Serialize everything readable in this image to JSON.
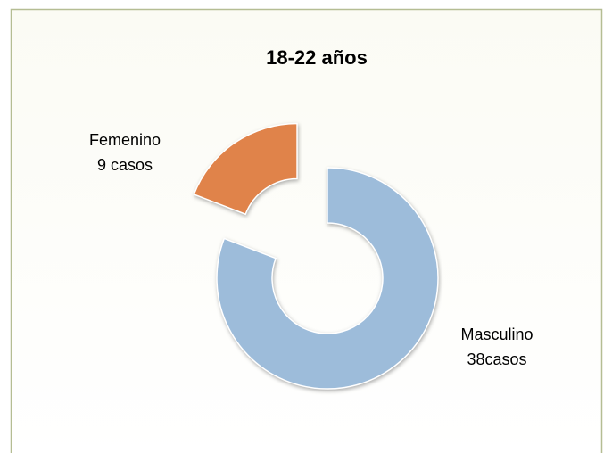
{
  "chart_data": {
    "type": "doughnut",
    "title": "18-22 años",
    "categories": [
      "Masculino",
      "Femenino"
    ],
    "values": [
      38,
      9
    ],
    "value_labels": [
      "38casos",
      "9 casos"
    ],
    "colors": [
      "#9dbcda",
      "#e0834a"
    ]
  }
}
